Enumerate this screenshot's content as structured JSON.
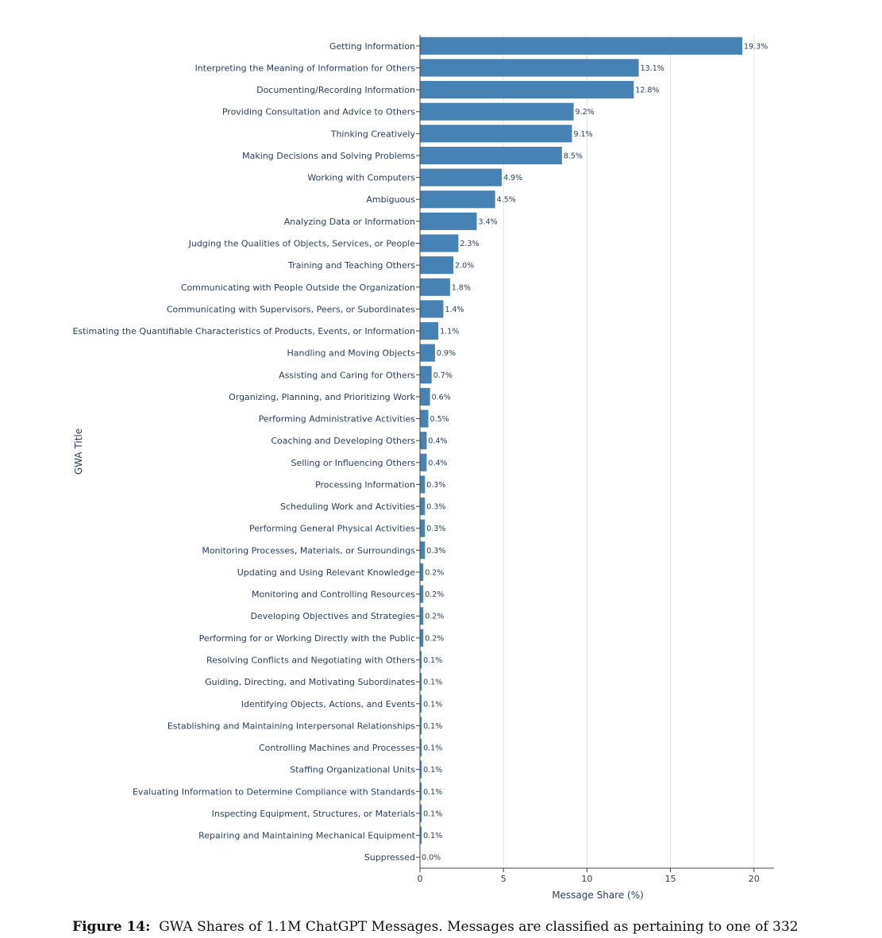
{
  "chart_data": {
    "type": "bar",
    "orientation": "horizontal",
    "categories": [
      "Getting Information",
      "Interpreting the Meaning of Information for Others",
      "Documenting/Recording Information",
      "Providing Consultation and Advice to Others",
      "Thinking Creatively",
      "Making Decisions and Solving Problems",
      "Working with Computers",
      "Ambiguous",
      "Analyzing Data or Information",
      "Judging the Qualities of Objects, Services, or People",
      "Training and Teaching Others",
      "Communicating with People Outside the Organization",
      "Communicating with Supervisors, Peers, or Subordinates",
      "Estimating the Quantifiable Characteristics of Products, Events, or Information",
      "Handling and Moving Objects",
      "Assisting and Caring for Others",
      "Organizing, Planning, and Prioritizing Work",
      "Performing Administrative Activities",
      "Coaching and Developing Others",
      "Selling or Influencing Others",
      "Processing Information",
      "Scheduling Work and Activities",
      "Performing General Physical Activities",
      "Monitoring Processes, Materials, or Surroundings",
      "Updating and Using Relevant Knowledge",
      "Monitoring and Controlling Resources",
      "Developing Objectives and Strategies",
      "Performing for or Working Directly with the Public",
      "Resolving Conflicts and Negotiating with Others",
      "Guiding, Directing, and Motivating Subordinates",
      "Identifying Objects, Actions, and Events",
      "Establishing and Maintaining Interpersonal Relationships",
      "Controlling Machines and Processes",
      "Staffing Organizational Units",
      "Evaluating Information to Determine Compliance with Standards",
      "Inspecting Equipment, Structures, or Materials",
      "Repairing and Maintaining Mechanical Equipment",
      "Suppressed"
    ],
    "values": [
      19.3,
      13.1,
      12.8,
      9.2,
      9.1,
      8.5,
      4.9,
      4.5,
      3.4,
      2.3,
      2.0,
      1.8,
      1.4,
      1.1,
      0.9,
      0.7,
      0.6,
      0.5,
      0.4,
      0.4,
      0.3,
      0.3,
      0.3,
      0.3,
      0.2,
      0.2,
      0.2,
      0.2,
      0.1,
      0.1,
      0.1,
      0.1,
      0.1,
      0.1,
      0.1,
      0.1,
      0.1,
      0.0
    ],
    "value_labels": [
      "19.3%",
      "13.1%",
      "12.8%",
      "9.2%",
      "9.1%",
      "8.5%",
      "4.9%",
      "4.5%",
      "3.4%",
      "2.3%",
      "2.0%",
      "1.8%",
      "1.4%",
      "1.1%",
      "0.9%",
      "0.7%",
      "0.6%",
      "0.5%",
      "0.4%",
      "0.4%",
      "0.3%",
      "0.3%",
      "0.3%",
      "0.3%",
      "0.2%",
      "0.2%",
      "0.2%",
      "0.2%",
      "0.1%",
      "0.1%",
      "0.1%",
      "0.1%",
      "0.1%",
      "0.1%",
      "0.1%",
      "0.1%",
      "0.1%",
      "0.0%"
    ],
    "title": "",
    "xlabel": "Message Share (%)",
    "ylabel": "GWA Title",
    "xlim": [
      0,
      21.2
    ],
    "xticks": [
      0,
      5,
      10,
      15,
      20
    ],
    "grid": true,
    "bar_color": "#4682b4"
  },
  "caption": {
    "label": "Figure 14:",
    "text": "GWA Shares of 1.1M ChatGPT Messages. Messages are classified as pertaining to one of 332"
  }
}
